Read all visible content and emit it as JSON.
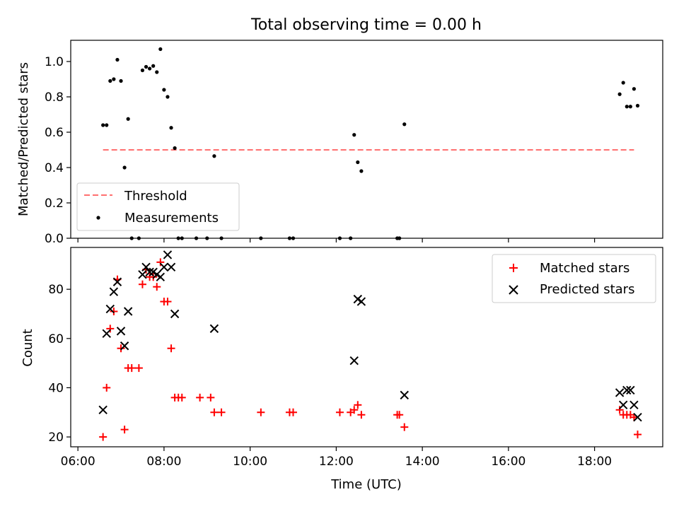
{
  "chart_data": [
    {
      "type": "scatter",
      "title": "Total observing time = 0.00 h",
      "ylabel": "Matched/Predicted stars",
      "ylim": [
        0,
        1.12
      ],
      "yticks": [
        "0.0",
        "0.2",
        "0.4",
        "0.6",
        "0.8",
        "1.0"
      ],
      "legend": {
        "position": "lower-left",
        "entries": [
          "Threshold",
          "Measurements"
        ]
      },
      "threshold": {
        "name": "Threshold",
        "y": 0.5,
        "x_range": [
          "06:35",
          "18:55"
        ],
        "color": "#ff7070"
      },
      "series": [
        {
          "name": "Measurements",
          "color": "#000000",
          "points": [
            [
              "06:35",
              0.64
            ],
            [
              "06:40",
              0.64
            ],
            [
              "06:45",
              0.89
            ],
            [
              "06:50",
              0.9
            ],
            [
              "06:55",
              1.01
            ],
            [
              "07:00",
              0.89
            ],
            [
              "07:05",
              0.4
            ],
            [
              "07:10",
              0.675
            ],
            [
              "07:15",
              0.0
            ],
            [
              "07:25",
              0.0
            ],
            [
              "07:30",
              0.95
            ],
            [
              "07:35",
              0.97
            ],
            [
              "07:40",
              0.96
            ],
            [
              "07:45",
              0.975
            ],
            [
              "07:50",
              0.94
            ],
            [
              "07:55",
              1.07
            ],
            [
              "08:00",
              0.84
            ],
            [
              "08:05",
              0.8
            ],
            [
              "08:10",
              0.625
            ],
            [
              "08:15",
              0.51
            ],
            [
              "08:20",
              0.0
            ],
            [
              "08:25",
              0.0
            ],
            [
              "08:45",
              0.0
            ],
            [
              "09:00",
              0.0
            ],
            [
              "09:10",
              0.465
            ],
            [
              "09:20",
              0.0
            ],
            [
              "10:15",
              0.0
            ],
            [
              "10:55",
              0.0
            ],
            [
              "11:00",
              0.0
            ],
            [
              "12:05",
              0.0
            ],
            [
              "12:20",
              0.0
            ],
            [
              "12:25",
              0.585
            ],
            [
              "12:30",
              0.43
            ],
            [
              "12:35",
              0.38
            ],
            [
              "13:25",
              0.0
            ],
            [
              "13:28",
              0.0
            ],
            [
              "13:35",
              0.645
            ],
            [
              "18:35",
              0.815
            ],
            [
              "18:40",
              0.88
            ],
            [
              "18:45",
              0.745
            ],
            [
              "18:50",
              0.745
            ],
            [
              "18:55",
              0.845
            ],
            [
              "19:00",
              0.75
            ]
          ]
        }
      ]
    },
    {
      "type": "scatter",
      "xlabel": "Time (UTC)",
      "ylabel": "Count",
      "ylim": [
        16,
        97
      ],
      "yticks": [
        "20",
        "40",
        "60",
        "80"
      ],
      "xticks": [
        "06:00",
        "08:00",
        "10:00",
        "12:00",
        "14:00",
        "16:00",
        "18:00"
      ],
      "xlim": [
        "05:50",
        "19:35"
      ],
      "legend": {
        "position": "top-right",
        "entries": [
          "Matched stars",
          "Predicted stars"
        ]
      },
      "series": [
        {
          "name": "Matched stars",
          "marker": "plus",
          "color": "#ff0000",
          "points": [
            [
              "06:35",
              20
            ],
            [
              "06:40",
              40
            ],
            [
              "06:45",
              64
            ],
            [
              "06:50",
              71
            ],
            [
              "06:55",
              84
            ],
            [
              "07:00",
              56
            ],
            [
              "07:05",
              23
            ],
            [
              "07:10",
              48
            ],
            [
              "07:15",
              48
            ],
            [
              "07:25",
              48
            ],
            [
              "07:30",
              82
            ],
            [
              "07:35",
              88
            ],
            [
              "07:40",
              85
            ],
            [
              "07:45",
              85
            ],
            [
              "07:50",
              81
            ],
            [
              "07:55",
              91
            ],
            [
              "08:00",
              75
            ],
            [
              "08:05",
              75
            ],
            [
              "08:10",
              56
            ],
            [
              "08:15",
              36
            ],
            [
              "08:20",
              36
            ],
            [
              "08:25",
              36
            ],
            [
              "08:50",
              36
            ],
            [
              "09:05",
              36
            ],
            [
              "09:10",
              30
            ],
            [
              "09:20",
              30
            ],
            [
              "10:15",
              30
            ],
            [
              "10:55",
              30
            ],
            [
              "11:00",
              30
            ],
            [
              "12:05",
              30
            ],
            [
              "12:20",
              30
            ],
            [
              "12:25",
              31
            ],
            [
              "12:30",
              33
            ],
            [
              "12:35",
              29
            ],
            [
              "13:25",
              29
            ],
            [
              "13:28",
              29
            ],
            [
              "13:35",
              24
            ],
            [
              "18:35",
              31
            ],
            [
              "18:40",
              29
            ],
            [
              "18:45",
              29
            ],
            [
              "18:50",
              29
            ],
            [
              "18:55",
              28
            ],
            [
              "19:00",
              21
            ]
          ]
        },
        {
          "name": "Predicted stars",
          "marker": "x",
          "color": "#000000",
          "points": [
            [
              "06:35",
              31
            ],
            [
              "06:40",
              62
            ],
            [
              "06:45",
              72
            ],
            [
              "06:50",
              79
            ],
            [
              "06:55",
              83
            ],
            [
              "07:00",
              63
            ],
            [
              "07:05",
              57
            ],
            [
              "07:10",
              71
            ],
            [
              "07:30",
              86
            ],
            [
              "07:35",
              89
            ],
            [
              "07:40",
              87
            ],
            [
              "07:45",
              87
            ],
            [
              "07:50",
              86
            ],
            [
              "07:55",
              85
            ],
            [
              "08:00",
              89
            ],
            [
              "08:05",
              94
            ],
            [
              "08:10",
              89
            ],
            [
              "08:15",
              70
            ],
            [
              "09:10",
              64
            ],
            [
              "12:25",
              51
            ],
            [
              "12:30",
              76
            ],
            [
              "12:35",
              75
            ],
            [
              "13:35",
              37
            ],
            [
              "18:35",
              38
            ],
            [
              "18:40",
              33
            ],
            [
              "18:45",
              39
            ],
            [
              "18:50",
              39
            ],
            [
              "18:55",
              33
            ],
            [
              "19:00",
              28
            ]
          ]
        }
      ]
    }
  ]
}
